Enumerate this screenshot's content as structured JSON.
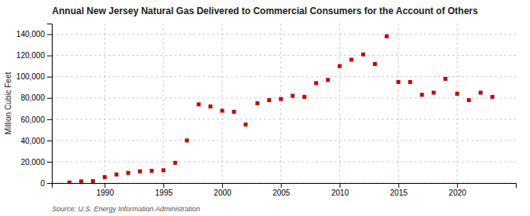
{
  "chart_data": {
    "type": "scatter",
    "title": "Annual New Jersey Natural Gas Delivered to Commercial Consumers for the Account of Others",
    "ylabel": "Million Cubic Feet",
    "source": "Source: U.S. Energy Information Administration",
    "x": [
      1987,
      1988,
      1989,
      1990,
      1991,
      1992,
      1993,
      1994,
      1995,
      1996,
      1997,
      1998,
      1999,
      2000,
      2001,
      2002,
      2003,
      2004,
      2005,
      2006,
      2007,
      2008,
      2009,
      2010,
      2011,
      2012,
      2013,
      2014,
      2015,
      2016,
      2017,
      2018,
      2019,
      2020,
      2021,
      2022,
      2023
    ],
    "values": [
      500,
      1500,
      1800,
      5500,
      8000,
      9500,
      11000,
      11500,
      12000,
      19000,
      40000,
      74000,
      72000,
      68000,
      67000,
      55000,
      75000,
      78000,
      79000,
      82000,
      81000,
      94000,
      97000,
      110000,
      116000,
      121000,
      112000,
      138000,
      95000,
      95000,
      83000,
      85000,
      98000,
      84000,
      78000,
      85000,
      81000
    ],
    "color": "#cc0000",
    "marker": "square",
    "xlim": [
      1985.5,
      2025
    ],
    "xticks": [
      1990,
      1995,
      2000,
      2005,
      2010,
      2015,
      2020
    ],
    "ylim": [
      0,
      150000
    ],
    "yticks": [
      0,
      {
        "value": 20000,
        "label": "20,000"
      },
      {
        "value": 40000,
        "label": "40,000"
      },
      {
        "value": 60000,
        "label": "60,000"
      },
      {
        "value": 80000,
        "label": "80,000"
      },
      {
        "value": 100000,
        "label": "100,000"
      },
      {
        "value": 120000,
        "label": "120,000"
      },
      {
        "value": 140000,
        "label": "140,000"
      }
    ],
    "grid": true
  }
}
